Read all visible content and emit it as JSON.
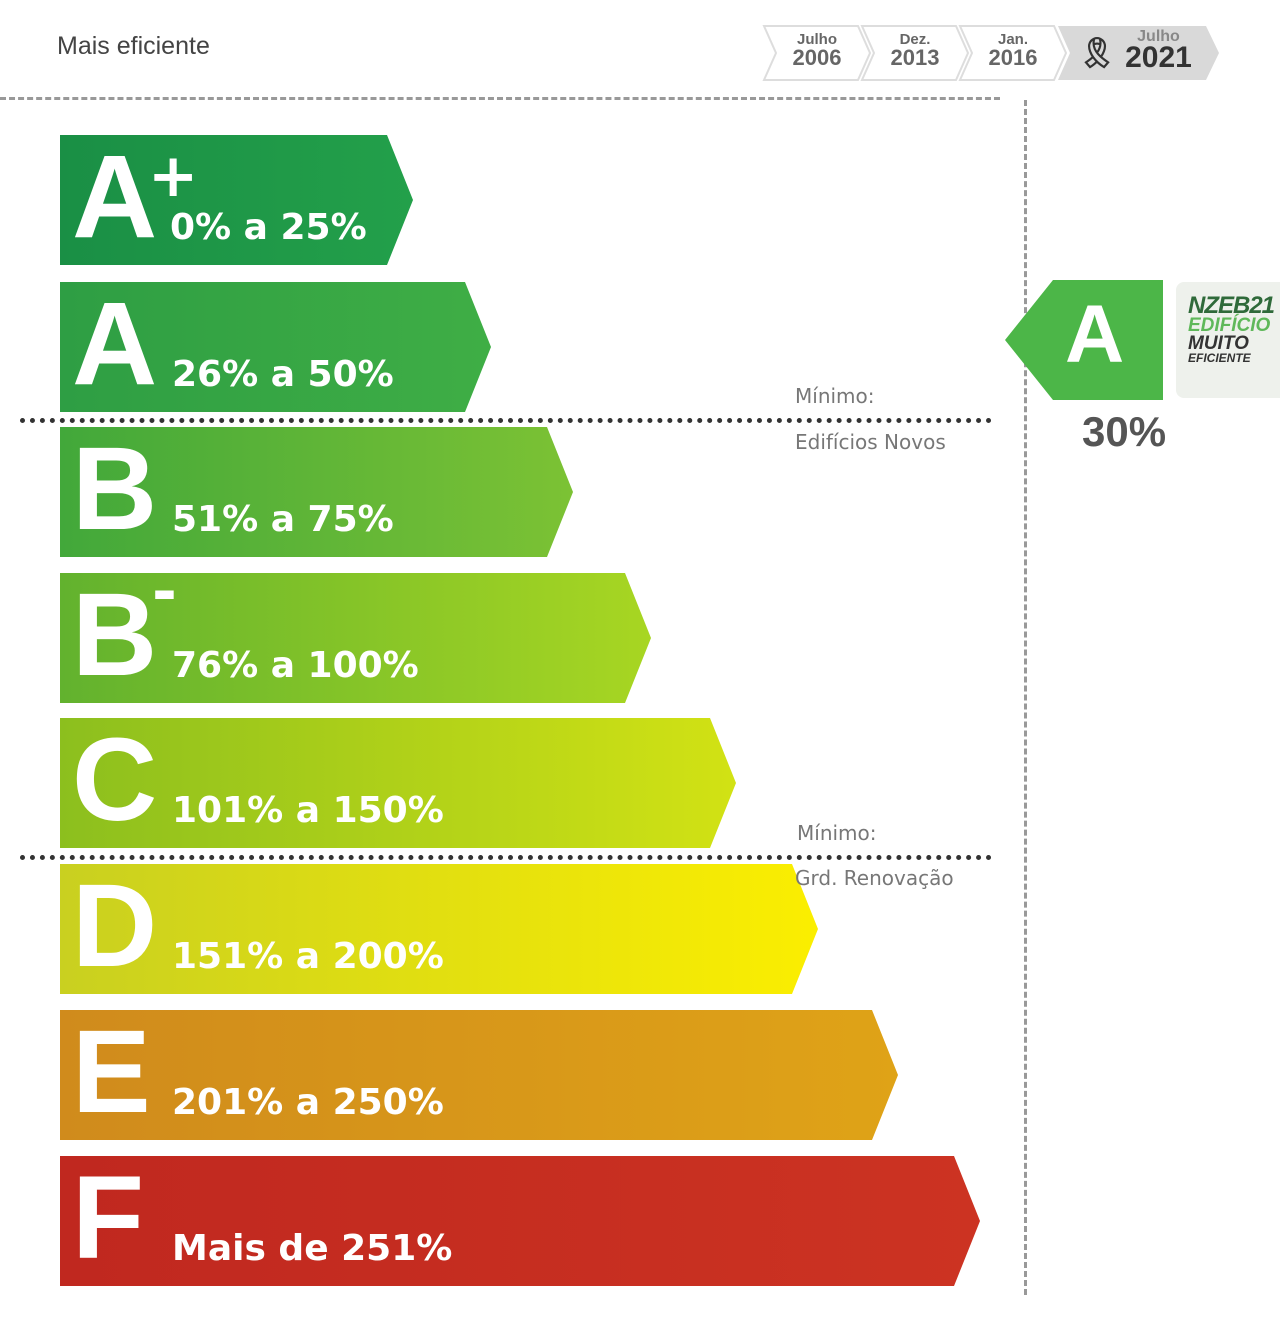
{
  "header": {
    "title": "Mais eficiente"
  },
  "timeline": [
    {
      "month": "Julho",
      "year": "2006"
    },
    {
      "month": "Dez.",
      "year": "2013"
    },
    {
      "month": "Jan.",
      "year": "2016"
    },
    {
      "month": "Julho",
      "year": "2021",
      "current": true,
      "icon": "award-ribbon-icon"
    }
  ],
  "classes": [
    {
      "letter": "A",
      "sup": "+",
      "range": "0% a 25%",
      "color_start": "#1a8f45",
      "color_end": "#23a04a"
    },
    {
      "letter": "A",
      "sup": "",
      "range": "26% a 50%",
      "color_start": "#2e9e44",
      "color_end": "#3fae45"
    },
    {
      "letter": "B",
      "sup": "",
      "range": "51% a 75%",
      "color_start": "#42a83a",
      "color_end": "#7cc234"
    },
    {
      "letter": "B",
      "sup": "-",
      "range": "76% a 100%",
      "color_start": "#62b22e",
      "color_end": "#a8d622"
    },
    {
      "letter": "C",
      "sup": "",
      "range": "101% a 150%",
      "color_start": "#8cbf1e",
      "color_end": "#d2e214"
    },
    {
      "letter": "D",
      "sup": "",
      "range": "151% a 200%",
      "color_start": "#c9d020",
      "color_end": "#fbee00"
    },
    {
      "letter": "E",
      "sup": "",
      "range": "201% a 250%",
      "color_start": "#d08b1c",
      "color_end": "#dfa317"
    },
    {
      "letter": "F",
      "sup": "",
      "range": "Mais de 251%",
      "color_start": "#c0281f",
      "color_end": "#cc3322"
    }
  ],
  "thresholds": [
    {
      "label": "Mínimo:",
      "sub": "Edifícios Novos"
    },
    {
      "label": "Mínimo:",
      "sub": "Grd. Renovação"
    }
  ],
  "result": {
    "letter": "A",
    "percent": "30%",
    "color": "#4cb648"
  },
  "nzeb": {
    "line1": "NZEB21",
    "line2": "EDIFÍCIO",
    "line3": "MUITO",
    "line4": "EFICIENTE"
  }
}
